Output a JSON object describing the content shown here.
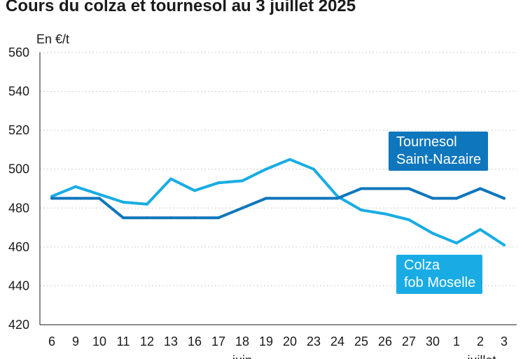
{
  "title": "Cours du colza et tournesol au 3 juillet 2025",
  "unit_label": "En €/t",
  "colors": {
    "tournesol": "#0e76bc",
    "colza": "#19ace4"
  },
  "chart_data": {
    "type": "line",
    "title": "Cours du colza et tournesol au 3 juillet 2025",
    "ylabel": "En €/t",
    "ylim": [
      420,
      560
    ],
    "yticks": [
      "420",
      "440",
      "460",
      "480",
      "500",
      "520",
      "540",
      "560"
    ],
    "categories": [
      "6",
      "9",
      "10",
      "11",
      "12",
      "13",
      "16",
      "17",
      "18",
      "19",
      "20",
      "23",
      "24",
      "25",
      "26",
      "27",
      "30",
      "1",
      "2",
      "3"
    ],
    "month_labels": [
      {
        "label": "juin",
        "at": "18"
      },
      {
        "label": "juillet",
        "at": "2"
      }
    ],
    "grid": true,
    "series": [
      {
        "name": "Tournesol\nSaint-Nazaire",
        "values": [
          485,
          485,
          485,
          475,
          475,
          475,
          475,
          475,
          480,
          485,
          485,
          485,
          485,
          490,
          490,
          490,
          485,
          485,
          490,
          485
        ]
      },
      {
        "name": "Colza\nfob Moselle",
        "values": [
          486,
          491,
          487,
          483,
          482,
          495,
          489,
          493,
          494,
          500,
          505,
          500,
          486,
          479,
          477,
          474,
          467,
          462,
          469,
          461
        ]
      }
    ]
  }
}
